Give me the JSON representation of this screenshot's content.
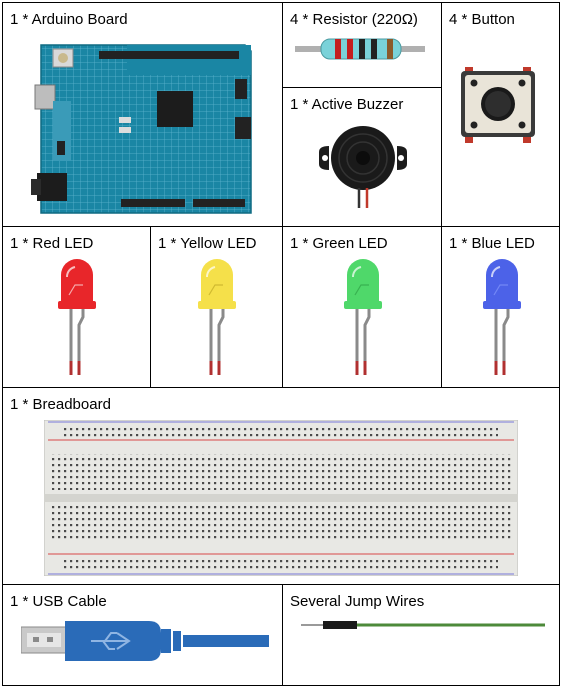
{
  "items": {
    "arduino": "1 * Arduino Board",
    "resistor": "4 * Resistor (220Ω)",
    "button": "4 * Button",
    "buzzer": "1 * Active Buzzer",
    "red_led": "1 * Red LED",
    "yellow_led": "1 * Yellow LED",
    "green_led": "1 * Green LED",
    "blue_led": "1 * Blue LED",
    "breadboard": "1 * Breadboard",
    "usb_cable": "1 * USB Cable",
    "jump_wires": "Several Jump Wires"
  },
  "colors": {
    "red_led": "#e8262a",
    "yellow_led": "#f5e04a",
    "green_led": "#4fd86a",
    "blue_led": "#4c62e8",
    "arduino_board": "#1a86a4",
    "usb_cable": "#2a6bb8"
  }
}
